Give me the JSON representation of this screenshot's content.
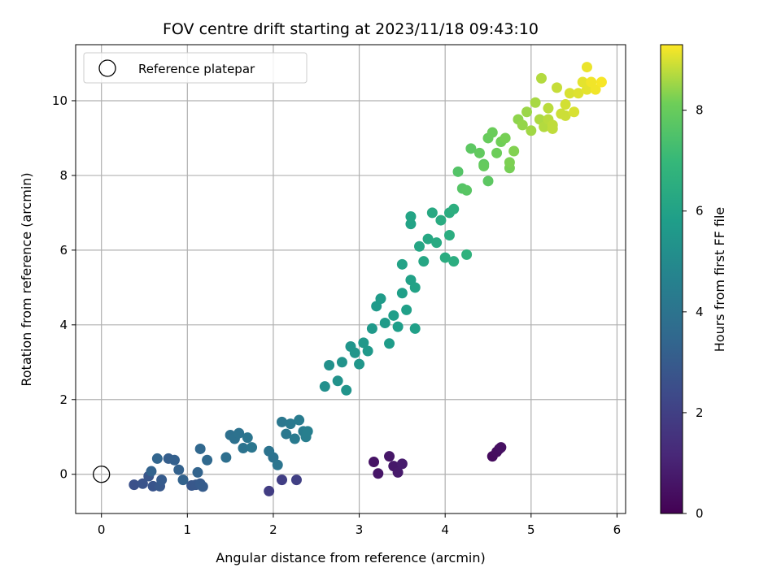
{
  "chart_data": {
    "type": "scatter",
    "title": "FOV centre drift starting at 2023/11/18 09:43:10",
    "xlabel": "Angular distance from reference (arcmin)",
    "ylabel": "Rotation from reference (arcmin)",
    "xlim": [
      -0.3,
      6.1
    ],
    "ylim": [
      -1.05,
      11.5
    ],
    "xticks": [
      0,
      1,
      2,
      3,
      4,
      5,
      6
    ],
    "yticks": [
      0,
      2,
      4,
      6,
      8,
      10
    ],
    "grid": true,
    "legend": {
      "position": "upper-left",
      "entries": [
        "Reference platepar"
      ]
    },
    "reference_point": {
      "x": 0,
      "y": 0,
      "marker": "open-circle",
      "color": "#000000"
    },
    "colorbar": {
      "label": "Hours from first FF file",
      "range": [
        0,
        9.3
      ],
      "ticks": [
        0,
        2,
        4,
        6,
        8
      ],
      "colormap": "viridis"
    },
    "series": [
      {
        "columns": [
          "x",
          "y",
          "hours"
        ],
        "points": [
          [
            3.17,
            0.33,
            0.55
          ],
          [
            3.22,
            0.02,
            0.6
          ],
          [
            3.35,
            0.48,
            0.65
          ],
          [
            3.4,
            0.22,
            0.7
          ],
          [
            3.45,
            0.05,
            0.75
          ],
          [
            3.5,
            0.28,
            0.8
          ],
          [
            4.55,
            0.48,
            0.3
          ],
          [
            4.6,
            0.6,
            0.35
          ],
          [
            4.63,
            0.68,
            0.4
          ],
          [
            4.65,
            0.72,
            0.45
          ],
          [
            1.95,
            -0.45,
            1.9
          ],
          [
            2.1,
            -0.15,
            1.95
          ],
          [
            2.27,
            -0.15,
            2.0
          ],
          [
            0.38,
            -0.28,
            2.6
          ],
          [
            0.48,
            -0.25,
            2.7
          ],
          [
            0.55,
            -0.05,
            2.8
          ],
          [
            0.6,
            -0.32,
            2.75
          ],
          [
            0.68,
            -0.32,
            2.9
          ],
          [
            0.7,
            -0.15,
            3.0
          ],
          [
            0.78,
            0.42,
            3.1
          ],
          [
            0.85,
            0.38,
            3.2
          ],
          [
            0.9,
            0.12,
            3.25
          ],
          [
            0.95,
            -0.15,
            3.3
          ],
          [
            1.05,
            -0.3,
            2.85
          ],
          [
            1.1,
            -0.28,
            2.9
          ],
          [
            1.12,
            0.05,
            3.35
          ],
          [
            1.15,
            -0.25,
            3.0
          ],
          [
            1.18,
            -0.33,
            3.05
          ],
          [
            1.15,
            0.68,
            3.5
          ],
          [
            1.23,
            0.38,
            3.55
          ],
          [
            0.65,
            0.42,
            3.4
          ],
          [
            0.58,
            0.08,
            3.3
          ],
          [
            1.45,
            0.45,
            3.8
          ],
          [
            1.5,
            1.05,
            3.85
          ],
          [
            1.55,
            0.95,
            3.9
          ],
          [
            1.6,
            1.1,
            3.95
          ],
          [
            1.65,
            0.7,
            4.0
          ],
          [
            1.7,
            0.98,
            4.05
          ],
          [
            1.75,
            0.72,
            4.1
          ],
          [
            1.95,
            0.62,
            4.0
          ],
          [
            2.0,
            0.45,
            3.95
          ],
          [
            2.05,
            0.25,
            4.05
          ],
          [
            2.1,
            1.4,
            4.15
          ],
          [
            2.15,
            1.08,
            4.2
          ],
          [
            2.2,
            1.35,
            4.25
          ],
          [
            2.25,
            0.95,
            4.3
          ],
          [
            2.3,
            1.45,
            4.35
          ],
          [
            2.35,
            1.15,
            4.4
          ],
          [
            2.38,
            1.0,
            4.45
          ],
          [
            2.4,
            1.15,
            4.5
          ],
          [
            2.6,
            2.35,
            5.2
          ],
          [
            2.65,
            2.92,
            5.25
          ],
          [
            2.75,
            2.5,
            5.3
          ],
          [
            2.8,
            3.0,
            5.35
          ],
          [
            2.85,
            2.25,
            5.4
          ],
          [
            2.9,
            3.42,
            5.45
          ],
          [
            2.95,
            3.25,
            5.5
          ],
          [
            3.0,
            2.95,
            5.5
          ],
          [
            3.05,
            3.52,
            5.55
          ],
          [
            3.1,
            3.3,
            5.6
          ],
          [
            3.15,
            3.9,
            5.6
          ],
          [
            3.2,
            4.5,
            5.65
          ],
          [
            3.25,
            4.7,
            5.7
          ],
          [
            3.3,
            4.05,
            5.7
          ],
          [
            3.35,
            3.5,
            5.75
          ],
          [
            3.4,
            4.25,
            5.8
          ],
          [
            3.45,
            3.95,
            5.8
          ],
          [
            3.5,
            4.85,
            5.85
          ],
          [
            3.55,
            4.4,
            5.9
          ],
          [
            3.6,
            5.2,
            5.95
          ],
          [
            3.65,
            5.0,
            6.0
          ],
          [
            3.65,
            3.9,
            5.9
          ],
          [
            3.5,
            5.62,
            6.0
          ],
          [
            3.6,
            6.7,
            6.05
          ],
          [
            3.6,
            6.9,
            6.1
          ],
          [
            3.7,
            6.1,
            6.15
          ],
          [
            3.75,
            5.7,
            6.2
          ],
          [
            3.8,
            6.3,
            6.25
          ],
          [
            3.85,
            7.0,
            6.3
          ],
          [
            3.9,
            6.2,
            6.35
          ],
          [
            3.95,
            6.8,
            6.4
          ],
          [
            4.0,
            5.8,
            6.45
          ],
          [
            4.05,
            6.4,
            6.5
          ],
          [
            4.05,
            7.0,
            6.45
          ],
          [
            4.1,
            5.7,
            6.5
          ],
          [
            4.1,
            7.1,
            6.55
          ],
          [
            4.25,
            5.88,
            6.7
          ],
          [
            4.15,
            8.1,
            7.6
          ],
          [
            4.2,
            7.65,
            7.65
          ],
          [
            4.25,
            7.6,
            7.7
          ],
          [
            4.3,
            8.72,
            7.8
          ],
          [
            4.4,
            8.6,
            7.9
          ],
          [
            4.45,
            8.25,
            7.95
          ],
          [
            4.5,
            9.0,
            8.0
          ],
          [
            4.55,
            9.15,
            8.05
          ],
          [
            4.6,
            8.6,
            8.1
          ],
          [
            4.65,
            8.9,
            8.15
          ],
          [
            4.7,
            9.0,
            8.2
          ],
          [
            4.75,
            8.35,
            8.25
          ],
          [
            4.8,
            8.65,
            8.3
          ],
          [
            4.45,
            8.3,
            7.85
          ],
          [
            4.5,
            7.85,
            7.8
          ],
          [
            4.75,
            8.2,
            8.2
          ],
          [
            4.85,
            9.5,
            8.4
          ],
          [
            4.9,
            9.35,
            8.45
          ],
          [
            4.95,
            9.7,
            8.5
          ],
          [
            5.0,
            9.2,
            8.55
          ],
          [
            5.05,
            9.95,
            8.6
          ],
          [
            5.1,
            9.5,
            8.65
          ],
          [
            5.12,
            10.6,
            8.7
          ],
          [
            5.15,
            9.3,
            8.7
          ],
          [
            5.2,
            9.8,
            8.75
          ],
          [
            5.25,
            9.25,
            8.8
          ],
          [
            5.3,
            10.35,
            8.85
          ],
          [
            5.35,
            9.65,
            8.9
          ],
          [
            5.4,
            9.9,
            8.95
          ],
          [
            5.45,
            10.2,
            9.0
          ],
          [
            5.5,
            9.7,
            9.0
          ],
          [
            5.55,
            10.2,
            9.05
          ],
          [
            5.6,
            10.5,
            9.1
          ],
          [
            5.65,
            10.3,
            9.1
          ],
          [
            5.65,
            10.9,
            9.15
          ],
          [
            5.7,
            10.5,
            9.2
          ],
          [
            5.75,
            10.3,
            9.2
          ],
          [
            5.82,
            10.5,
            9.25
          ],
          [
            5.2,
            9.5,
            8.75
          ],
          [
            5.25,
            9.35,
            8.8
          ],
          [
            5.4,
            9.6,
            8.9
          ]
        ]
      }
    ]
  }
}
